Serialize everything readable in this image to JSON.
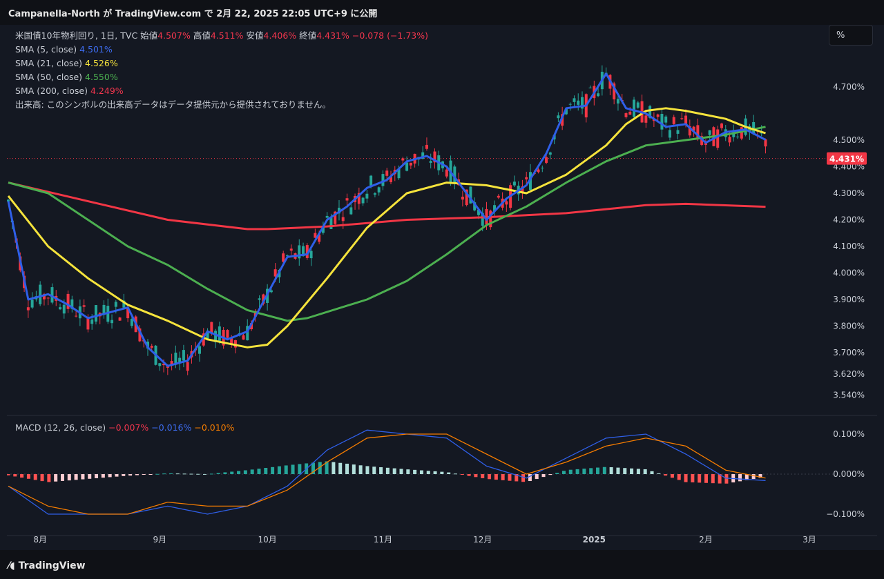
{
  "header": {
    "title": "Campanella-North が TradingView.com で 2月 22, 2025 22:05 UTC+9 に公開"
  },
  "toolbar": {
    "scale_label": "%"
  },
  "legend": {
    "instrument": "米国債10年物利回り, 1日, TVC",
    "open_label": "始値",
    "open": "4.507%",
    "high_label": "高値",
    "high": "4.511%",
    "low_label": "安値",
    "low": "4.406%",
    "close_label": "終値",
    "close": "4.431%",
    "change": "−0.078 (−1.73%)",
    "sma5_label": "SMA (5, close)",
    "sma5": "4.501%",
    "sma21_label": "SMA (21, close)",
    "sma21": "4.526%",
    "sma50_label": "SMA (50, close)",
    "sma50": "4.550%",
    "sma200_label": "SMA (200, close)",
    "sma200": "4.249%",
    "volume_note": "出来高: このシンボルの出来高データはデータ提供元から提供されておりません。",
    "macd_label": "MACD (12, 26, close)",
    "macd_hist": "−0.007%",
    "macd_line": "−0.016%",
    "macd_signal": "−0.010%"
  },
  "price_badge": "4.431%",
  "footer": {
    "brand": "TradingView"
  },
  "colors": {
    "up": "#26a69a",
    "down": "#f23645",
    "sma5": "#2f5fe8",
    "sma21": "#f5e33c",
    "sma50": "#4caf50",
    "sma200": "#f23645",
    "macd": "#2f5fe8",
    "signal": "#f57c00"
  },
  "chart_data": [
    {
      "type": "line",
      "title": "米国債10年物利回り, 1日, TVC",
      "ylabel": "%",
      "y_ticks": [
        "4.700%",
        "4.500%",
        "4.400%",
        "4.300%",
        "4.200%",
        "4.100%",
        "4.000%",
        "3.900%",
        "3.800%",
        "3.700%",
        "3.620%",
        "3.540%"
      ],
      "y_tick_values": [
        4.7,
        4.5,
        4.4,
        4.3,
        4.2,
        4.1,
        4.0,
        3.9,
        3.8,
        3.7,
        3.62,
        3.54
      ],
      "x_ticks": [
        "8月",
        "9月",
        "10月",
        "11月",
        "12月",
        "2025",
        "2月",
        "3月"
      ],
      "x_tick_values": [
        8,
        38,
        65,
        94,
        119,
        147,
        175,
        201
      ],
      "series": [
        {
          "name": "SMA (200, close)",
          "x": [
            0,
            20,
            40,
            60,
            65,
            80,
            100,
            120,
            140,
            160,
            170,
            190
          ],
          "y": [
            4.34,
            4.27,
            4.2,
            4.165,
            4.165,
            4.175,
            4.2,
            4.21,
            4.225,
            4.255,
            4.26,
            4.249
          ]
        },
        {
          "name": "SMA (50, close)",
          "x": [
            0,
            10,
            20,
            30,
            40,
            50,
            60,
            70,
            75,
            90,
            100,
            110,
            120,
            130,
            140,
            150,
            160,
            170,
            180,
            190
          ],
          "y": [
            4.34,
            4.3,
            4.2,
            4.1,
            4.03,
            3.94,
            3.86,
            3.82,
            3.83,
            3.9,
            3.97,
            4.07,
            4.18,
            4.25,
            4.34,
            4.42,
            4.48,
            4.5,
            4.52,
            4.55
          ]
        },
        {
          "name": "SMA (21, close)",
          "x": [
            0,
            10,
            20,
            30,
            40,
            50,
            60,
            65,
            70,
            80,
            90,
            100,
            110,
            120,
            130,
            140,
            150,
            155,
            160,
            165,
            170,
            180,
            185,
            190
          ],
          "y": [
            4.29,
            4.1,
            3.98,
            3.88,
            3.82,
            3.75,
            3.72,
            3.73,
            3.8,
            3.98,
            4.17,
            4.3,
            4.34,
            4.33,
            4.3,
            4.37,
            4.48,
            4.56,
            4.61,
            4.62,
            4.61,
            4.58,
            4.55,
            4.526
          ]
        },
        {
          "name": "SMA (5, close)",
          "x": [
            0,
            5,
            10,
            15,
            20,
            25,
            30,
            35,
            40,
            45,
            50,
            55,
            60,
            65,
            70,
            75,
            80,
            85,
            90,
            95,
            100,
            105,
            110,
            115,
            120,
            125,
            130,
            135,
            140,
            145,
            150,
            155,
            160,
            165,
            170,
            175,
            180,
            185,
            190
          ],
          "y": [
            4.27,
            3.9,
            3.92,
            3.88,
            3.83,
            3.85,
            3.87,
            3.72,
            3.65,
            3.67,
            3.78,
            3.75,
            3.78,
            3.92,
            4.06,
            4.07,
            4.2,
            4.25,
            4.32,
            4.35,
            4.42,
            4.44,
            4.4,
            4.3,
            4.2,
            4.28,
            4.33,
            4.45,
            4.62,
            4.63,
            4.75,
            4.62,
            4.6,
            4.55,
            4.56,
            4.49,
            4.53,
            4.54,
            4.501
          ]
        }
      ]
    },
    {
      "type": "bar",
      "title": "MACD (12, 26, close)",
      "y_ticks": [
        "0.100%",
        "0.000%",
        "−0.100%"
      ],
      "y_tick_values": [
        0.1,
        0.0,
        -0.1
      ],
      "x": [
        0,
        10,
        20,
        30,
        40,
        50,
        60,
        70,
        80,
        90,
        100,
        110,
        120,
        130,
        140,
        150,
        160,
        170,
        180,
        190
      ],
      "histogram": [
        -0.003,
        -0.02,
        -0.012,
        -0.004,
        0.002,
        0.0,
        0.01,
        0.022,
        0.032,
        0.02,
        0.012,
        0.005,
        -0.012,
        -0.02,
        0.01,
        0.018,
        0.012,
        -0.02,
        -0.024,
        -0.007
      ],
      "series": [
        {
          "name": "MACD",
          "values": [
            -0.03,
            -0.1,
            -0.1,
            -0.1,
            -0.08,
            -0.1,
            -0.08,
            -0.03,
            0.06,
            0.11,
            0.1,
            0.09,
            0.02,
            -0.01,
            0.04,
            0.09,
            0.1,
            0.05,
            -0.01,
            -0.016
          ]
        },
        {
          "name": "Signal",
          "values": [
            -0.03,
            -0.08,
            -0.1,
            -0.1,
            -0.07,
            -0.08,
            -0.08,
            -0.04,
            0.03,
            0.09,
            0.1,
            0.1,
            0.05,
            0.0,
            0.03,
            0.07,
            0.09,
            0.07,
            0.01,
            -0.01
          ]
        }
      ]
    }
  ]
}
